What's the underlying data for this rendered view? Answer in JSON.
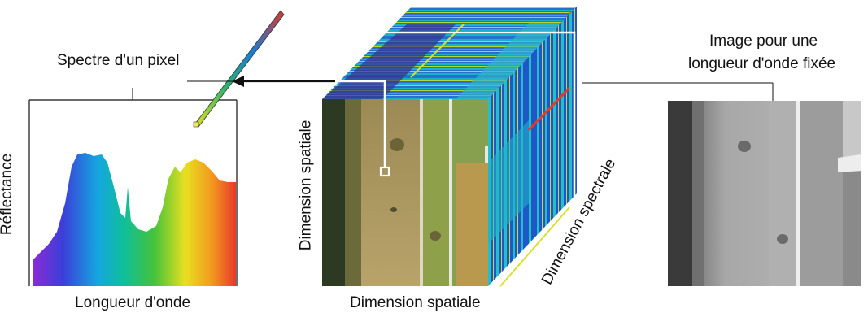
{
  "labels": {
    "pixel_spectrum_title": "Spectre d'un pixel",
    "reflectance_axis": "Réflectance",
    "wavelength_axis": "Longueur d'onde",
    "spatial_dimension_vertical": "Dimension spatiale",
    "spatial_dimension_horizontal": "Dimension spatiale",
    "spectral_dimension": "Dimension spectrale",
    "fixed_wavelength_image_line1": "Image pour une",
    "fixed_wavelength_image_line2": "longueur d'onde fixée"
  }
}
